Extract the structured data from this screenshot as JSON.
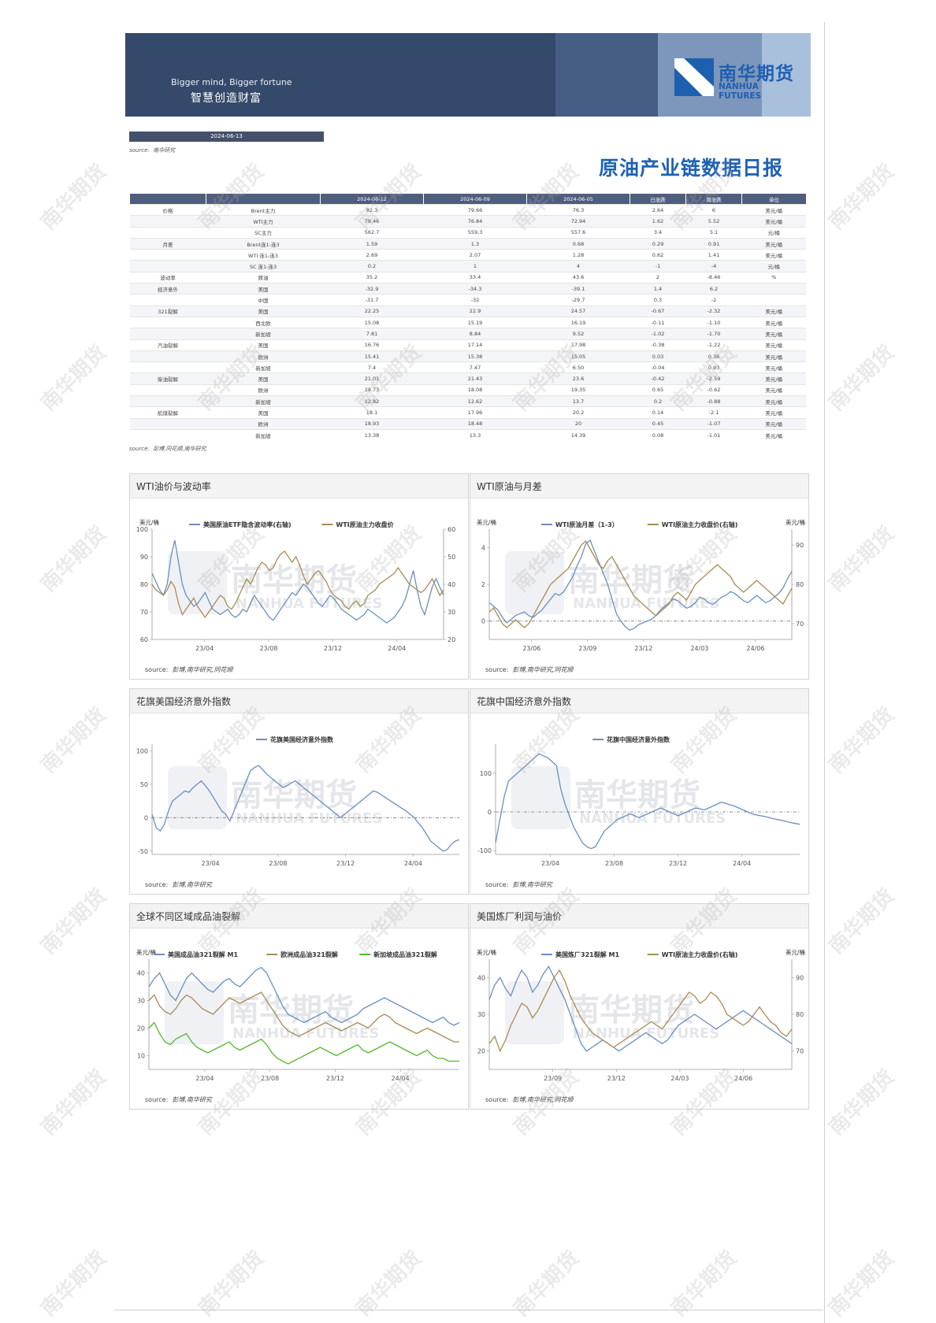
{
  "banner": {
    "slogan_en": "Bigger mind, Bigger fortune",
    "slogan_cn": "智慧创造财富",
    "logo_cn": "南华期货",
    "logo_en": "NANHUA FUTURES"
  },
  "report": {
    "date": "2024-06-13",
    "source_label": "source:",
    "source_top": "南华研究",
    "title": "原油产业链数据日报",
    "table_source": "彭博,同花顺,南华研究"
  },
  "table": {
    "headers": [
      "",
      "",
      "2024-06-12",
      "2024-06-09",
      "2024-06-05",
      "日涨跌",
      "周涨跌",
      "单位"
    ],
    "rows": [
      [
        "价格",
        "Brent主力",
        "82.3",
        "79.66",
        "76.3",
        "2.64",
        "6",
        "美元/桶"
      ],
      [
        "",
        "WTI主力",
        "78.46",
        "76.84",
        "72.94",
        "1.62",
        "5.52",
        "美元/桶"
      ],
      [
        "",
        "SC主力",
        "562.7",
        "559.3",
        "557.6",
        "3.4",
        "5.1",
        "元/桶"
      ],
      [
        "月差",
        "Brent连1-连3",
        "1.59",
        "1.3",
        "0.68",
        "0.29",
        "0.91",
        "美元/桶"
      ],
      [
        "",
        "WTI 连1-连3",
        "2.69",
        "2.07",
        "1.28",
        "0.62",
        "1.41",
        "美元/桶"
      ],
      [
        "",
        "SC 连1-连3",
        "0.2",
        "1",
        "4",
        "-1",
        "-4",
        "元/桶"
      ],
      [
        "波动率",
        "原油",
        "35.2",
        "33.4",
        "43.6",
        "2",
        "-8.46",
        "%"
      ],
      [
        "经济意外",
        "美国",
        "-32.9",
        "-34.3",
        "-39.1",
        "1.4",
        "6.2",
        ""
      ],
      [
        "",
        "中国",
        "-31.7",
        "-32",
        "-29.7",
        "0.3",
        "-2",
        ""
      ],
      [
        "321裂解",
        "美国",
        "22.25",
        "22.9",
        "24.57",
        "-0.67",
        "-2.32",
        "美元/桶"
      ],
      [
        "",
        "西北欧",
        "15.08",
        "15.19",
        "16.19",
        "-0.11",
        "-1.10",
        "美元/桶"
      ],
      [
        "",
        "新加坡",
        "7.81",
        "8.84",
        "9.52",
        "-1.02",
        "-1.70",
        "美元/桶"
      ],
      [
        "汽油裂解",
        "美国",
        "16.76",
        "17.14",
        "17.98",
        "-0.38",
        "-1.22",
        "美元/桶"
      ],
      [
        "",
        "欧洲",
        "15.41",
        "15.38",
        "15.05",
        "0.03",
        "0.36",
        "美元/桶"
      ],
      [
        "",
        "新加坡",
        "7.4",
        "7.47",
        "6.50",
        "-0.04",
        "0.93",
        "美元/桶"
      ],
      [
        "柴油裂解",
        "美国",
        "21.01",
        "21.43",
        "23.6",
        "-0.42",
        "-2.59",
        "美元/桶"
      ],
      [
        "",
        "欧洲",
        "18.73",
        "18.08",
        "19.35",
        "0.65",
        "-0.62",
        "美元/桶"
      ],
      [
        "",
        "新加坡",
        "12.82",
        "12.62",
        "13.7",
        "0.2",
        "-0.88",
        "美元/桶"
      ],
      [
        "航煤裂解",
        "美国",
        "18.1",
        "17.96",
        "20.2",
        "0.14",
        "-2.1",
        "美元/桶"
      ],
      [
        "",
        "欧洲",
        "18.93",
        "18.48",
        "20",
        "0.45",
        "-1.07",
        "美元/桶"
      ],
      [
        "",
        "新加坡",
        "13.38",
        "13.3",
        "14.39",
        "0.08",
        "-1.01",
        "美元/桶"
      ]
    ]
  },
  "panels": [
    {
      "title": "WTI油价与波动率",
      "source": "彭博,南华研究,同花顺"
    },
    {
      "title": "WTI原油与月差",
      "source": "彭博,南华研究,同花顺"
    },
    {
      "title": "花旗美国经济意外指数",
      "source": "彭博,南华研究"
    },
    {
      "title": "花旗中国经济意外指数",
      "source": "彭博,南华研究"
    },
    {
      "title": "全球不同区域成品油裂解",
      "source": "彭博,南华研究"
    },
    {
      "title": "美国炼厂利润与油价",
      "source": "彭博,南华研究,同花顺"
    }
  ],
  "watermark": {
    "text": "南华期货",
    "chart_cn": "南华期货",
    "chart_en": "NANHUA FUTURES"
  },
  "colors": {
    "blue": "#6a8fbf",
    "gold": "#a98b55",
    "green": "#55b82e",
    "navy": "#35496a",
    "title_blue": "#1f62b3"
  },
  "chart_data": [
    {
      "type": "line",
      "left_unit": "美元/桶",
      "x_ticks": [
        "23/04",
        "23/08",
        "23/12",
        "24/04"
      ],
      "ylim_left": [
        60,
        100
      ],
      "yticks_left": [
        60,
        70,
        80,
        90,
        100
      ],
      "ylim_right": [
        20,
        60
      ],
      "yticks_right": [
        20,
        30,
        40,
        50,
        60
      ],
      "series": [
        {
          "name": "美国原油ETF隐含波动率(右轴)",
          "axis": "right",
          "color": "#6a8fbf",
          "values": [
            44,
            41,
            38,
            36,
            40,
            50,
            56,
            48,
            40,
            36,
            34,
            32,
            33,
            35,
            37,
            34,
            31,
            30,
            29,
            30,
            31,
            29,
            28,
            29,
            31,
            30,
            33,
            36,
            34,
            32,
            30,
            28,
            27,
            29,
            31,
            33,
            35,
            37,
            36,
            38,
            40,
            39,
            37,
            35,
            33,
            32,
            34,
            36,
            35,
            33,
            31,
            30,
            29,
            28,
            27,
            28,
            29,
            31,
            30,
            29,
            28,
            27,
            26,
            27,
            28,
            30,
            32,
            35,
            40,
            45,
            38,
            32,
            29,
            34,
            39,
            42,
            39,
            36
          ]
        },
        {
          "name": "WTI原油主力收盘价",
          "axis": "left",
          "color": "#a98b55",
          "values": [
            80,
            78,
            77,
            76,
            78,
            81,
            79,
            73,
            69,
            71,
            73,
            75,
            72,
            70,
            68,
            70,
            72,
            74,
            76,
            75,
            72,
            71,
            73,
            76,
            79,
            82,
            80,
            83,
            86,
            88,
            87,
            85,
            86,
            89,
            91,
            92,
            90,
            88,
            90,
            87,
            83,
            80,
            82,
            84,
            85,
            83,
            81,
            78,
            76,
            75,
            74,
            72,
            71,
            73,
            74,
            72,
            73,
            76,
            77,
            78,
            80,
            81,
            82,
            83,
            84,
            86,
            84,
            82,
            80,
            79,
            78,
            77,
            78,
            80,
            82,
            79,
            76,
            78
          ]
        }
      ]
    },
    {
      "type": "line",
      "left_unit": "美元/桶",
      "right_unit": "美元/桶",
      "x_ticks": [
        "23/06",
        "23/09",
        "23/12",
        "24/03",
        "24/06"
      ],
      "ylim_left": [
        -1,
        5
      ],
      "yticks_left": [
        0,
        2,
        4
      ],
      "ylim_right": [
        66,
        94
      ],
      "yticks_right": [
        70,
        80,
        90
      ],
      "series": [
        {
          "name": "WTI原油月差（1-3）",
          "axis": "left",
          "color": "#6a8fbf",
          "values": [
            1.0,
            0.8,
            0.6,
            0.2,
            -0.1,
            0.1,
            0.3,
            0.4,
            0.5,
            0.3,
            0.2,
            0.4,
            0.6,
            0.9,
            1.2,
            1.5,
            1.4,
            1.6,
            2.0,
            2.4,
            3.0,
            3.5,
            4.2,
            4.4,
            3.8,
            3.2,
            2.6,
            2.0,
            1.2,
            0.4,
            0.0,
            -0.3,
            -0.5,
            -0.4,
            -0.2,
            -0.1,
            0.0,
            0.1,
            0.3,
            0.6,
            0.8,
            1.0,
            1.2,
            1.1,
            0.9,
            0.7,
            0.8,
            1.0,
            1.3,
            1.2,
            1.0,
            0.9,
            1.1,
            1.3,
            1.4,
            1.6,
            1.5,
            1.3,
            1.1,
            1.0,
            1.2,
            1.4,
            1.2,
            1.0,
            1.1,
            1.3,
            1.5,
            1.8,
            2.3,
            2.7
          ]
        },
        {
          "name": "WTI原油主力收盘价(右轴)",
          "axis": "right",
          "color": "#a98b55",
          "values": [
            73,
            74,
            72,
            70,
            69,
            70,
            71,
            70,
            69,
            70,
            72,
            74,
            76,
            78,
            80,
            81,
            82,
            83,
            84,
            86,
            88,
            90,
            91,
            89,
            87,
            85,
            84,
            86,
            87,
            85,
            83,
            81,
            79,
            77,
            76,
            75,
            74,
            73,
            72,
            73,
            74,
            75,
            77,
            78,
            77,
            76,
            78,
            80,
            81,
            82,
            83,
            84,
            85,
            84,
            83,
            82,
            80,
            79,
            78,
            79,
            80,
            81,
            80,
            79,
            78,
            77,
            76,
            75,
            77,
            79
          ]
        }
      ]
    },
    {
      "type": "line",
      "x_ticks": [
        "23/04",
        "23/08",
        "23/12",
        "24/04"
      ],
      "ylim": [
        -55,
        110
      ],
      "yticks": [
        -50,
        0,
        50,
        100
      ],
      "series": [
        {
          "name": "花旗美国经济意外指数",
          "color": "#6a8fbf",
          "values": [
            5,
            -15,
            -20,
            -10,
            10,
            25,
            30,
            35,
            40,
            38,
            45,
            50,
            55,
            48,
            40,
            30,
            20,
            10,
            5,
            -5,
            10,
            25,
            40,
            55,
            70,
            75,
            78,
            72,
            65,
            60,
            55,
            50,
            45,
            48,
            52,
            55,
            50,
            45,
            40,
            35,
            30,
            25,
            20,
            15,
            10,
            5,
            0,
            5,
            10,
            15,
            20,
            25,
            30,
            35,
            40,
            38,
            34,
            30,
            26,
            22,
            18,
            14,
            10,
            5,
            0,
            -8,
            -15,
            -25,
            -35,
            -40,
            -45,
            -50,
            -48,
            -40,
            -35,
            -33
          ]
        }
      ]
    },
    {
      "type": "line",
      "x_ticks": [
        "23/04",
        "23/08",
        "23/12",
        "24/04"
      ],
      "ylim": [
        -110,
        175
      ],
      "yticks": [
        -100,
        0,
        100
      ],
      "series": [
        {
          "name": "花旗中国经济意外指数",
          "color": "#6a8fbf",
          "values": [
            -80,
            -20,
            40,
            80,
            90,
            100,
            110,
            120,
            130,
            140,
            150,
            145,
            140,
            130,
            120,
            60,
            20,
            -10,
            -40,
            -60,
            -80,
            -90,
            -95,
            -90,
            -70,
            -50,
            -40,
            -30,
            -20,
            -15,
            -10,
            -5,
            -10,
            -15,
            -10,
            -5,
            0,
            5,
            10,
            5,
            0,
            -5,
            -10,
            -5,
            0,
            5,
            10,
            8,
            5,
            10,
            15,
            20,
            25,
            22,
            18,
            15,
            10,
            5,
            0,
            -5,
            -8,
            -10,
            -12,
            -15,
            -18,
            -20,
            -22,
            -25,
            -28,
            -30,
            -32
          ]
        }
      ]
    },
    {
      "type": "line",
      "left_unit": "美元/桶",
      "x_ticks": [
        "23/04",
        "23/08",
        "23/12",
        "24/04"
      ],
      "ylim": [
        5,
        45
      ],
      "yticks": [
        10,
        20,
        30,
        40
      ],
      "series": [
        {
          "name": "美国成品油321裂解 M1",
          "color": "#6a8fbf",
          "values": [
            35,
            38,
            40,
            36,
            32,
            30,
            34,
            38,
            40,
            38,
            36,
            34,
            33,
            35,
            37,
            38,
            36,
            35,
            37,
            39,
            41,
            42,
            40,
            36,
            32,
            28,
            25,
            24,
            23,
            22,
            23,
            24,
            25,
            26,
            24,
            23,
            22,
            23,
            24,
            25,
            27,
            28,
            29,
            30,
            31,
            30,
            29,
            28,
            27,
            26,
            25,
            24,
            23,
            22,
            23,
            24,
            22,
            21,
            22
          ]
        },
        {
          "name": "欧洲成品油321裂解",
          "color": "#a98b55",
          "values": [
            30,
            32,
            28,
            26,
            25,
            27,
            30,
            32,
            31,
            29,
            27,
            26,
            25,
            27,
            29,
            31,
            30,
            29,
            30,
            31,
            32,
            33,
            30,
            27,
            24,
            21,
            19,
            18,
            17,
            18,
            19,
            20,
            21,
            22,
            21,
            20,
            19,
            20,
            21,
            22,
            21,
            20,
            22,
            24,
            25,
            24,
            22,
            21,
            20,
            19,
            18,
            19,
            20,
            19,
            18,
            17,
            16,
            15,
            15
          ]
        },
        {
          "name": "新加坡成品油321裂解",
          "color": "#55b82e",
          "values": [
            20,
            22,
            18,
            15,
            14,
            16,
            17,
            18,
            15,
            13,
            12,
            11,
            12,
            13,
            14,
            15,
            13,
            12,
            13,
            14,
            15,
            16,
            14,
            11,
            9,
            8,
            7,
            8,
            9,
            10,
            11,
            12,
            13,
            12,
            11,
            10,
            11,
            12,
            13,
            14,
            12,
            11,
            12,
            13,
            14,
            15,
            14,
            13,
            12,
            11,
            10,
            11,
            12,
            10,
            9,
            9,
            8,
            8,
            8
          ]
        }
      ]
    },
    {
      "type": "line",
      "left_unit": "美元/桶",
      "right_unit": "美元/桶",
      "x_ticks": [
        "23/09",
        "23/12",
        "24/03",
        "24/06"
      ],
      "ylim_left": [
        15,
        45
      ],
      "yticks_left": [
        20,
        30,
        40
      ],
      "ylim_right": [
        65,
        95
      ],
      "yticks_right": [
        70,
        80,
        90
      ],
      "series": [
        {
          "name": "美国炼厂321裂解 M1",
          "color": "#6a8fbf",
          "values": [
            34,
            38,
            40,
            37,
            35,
            39,
            42,
            40,
            36,
            38,
            41,
            43,
            40,
            37,
            34,
            30,
            26,
            22,
            20,
            21,
            22,
            23,
            22,
            21,
            20,
            21,
            22,
            23,
            24,
            25,
            24,
            23,
            22,
            23,
            25,
            27,
            28,
            29,
            30,
            29,
            28,
            27,
            26,
            27,
            28,
            29,
            30,
            31,
            30,
            29,
            28,
            27,
            26,
            25,
            24,
            23,
            22
          ]
        },
        {
          "name": "WTI原油主力收盘价(右轴)",
          "axis": "right",
          "color": "#a98b55",
          "values": [
            72,
            74,
            70,
            73,
            77,
            80,
            83,
            82,
            79,
            81,
            84,
            87,
            90,
            92,
            89,
            85,
            82,
            79,
            77,
            75,
            74,
            73,
            72,
            71,
            72,
            73,
            74,
            75,
            76,
            77,
            78,
            77,
            76,
            78,
            80,
            82,
            84,
            86,
            85,
            83,
            84,
            86,
            85,
            83,
            80,
            79,
            78,
            77,
            78,
            80,
            82,
            80,
            78,
            77,
            75,
            74,
            76
          ]
        }
      ]
    }
  ]
}
